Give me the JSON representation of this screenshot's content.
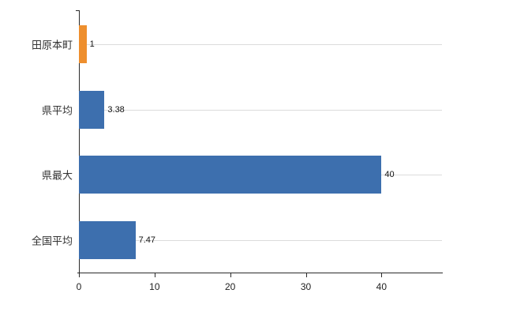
{
  "chart_data": {
    "type": "bar",
    "orientation": "horizontal",
    "title": "",
    "xlabel": "",
    "ylabel": "",
    "categories": [
      "田原本町",
      "県平均",
      "県最大",
      "全国平均"
    ],
    "values": [
      1,
      3.38,
      40,
      7.47
    ],
    "value_labels": [
      "1",
      "3.38",
      "40",
      "7.47"
    ],
    "bar_colors": [
      "#ee8f2e",
      "#3d6fae",
      "#3d6fae",
      "#3d6fae"
    ],
    "x_ticks": [
      0,
      10,
      20,
      30,
      40
    ],
    "x_tick_labels": [
      "0",
      "10",
      "20",
      "30",
      "40"
    ],
    "xlim": [
      0,
      48
    ],
    "grid": "horizontal-per-category",
    "legend": "none",
    "colors": {
      "background": "#ffffff",
      "axis": "#2b2b2b",
      "gridline": "#dcdcdc",
      "highlight_bar": "#ee8f2e",
      "default_bar": "#3d6fae"
    }
  }
}
